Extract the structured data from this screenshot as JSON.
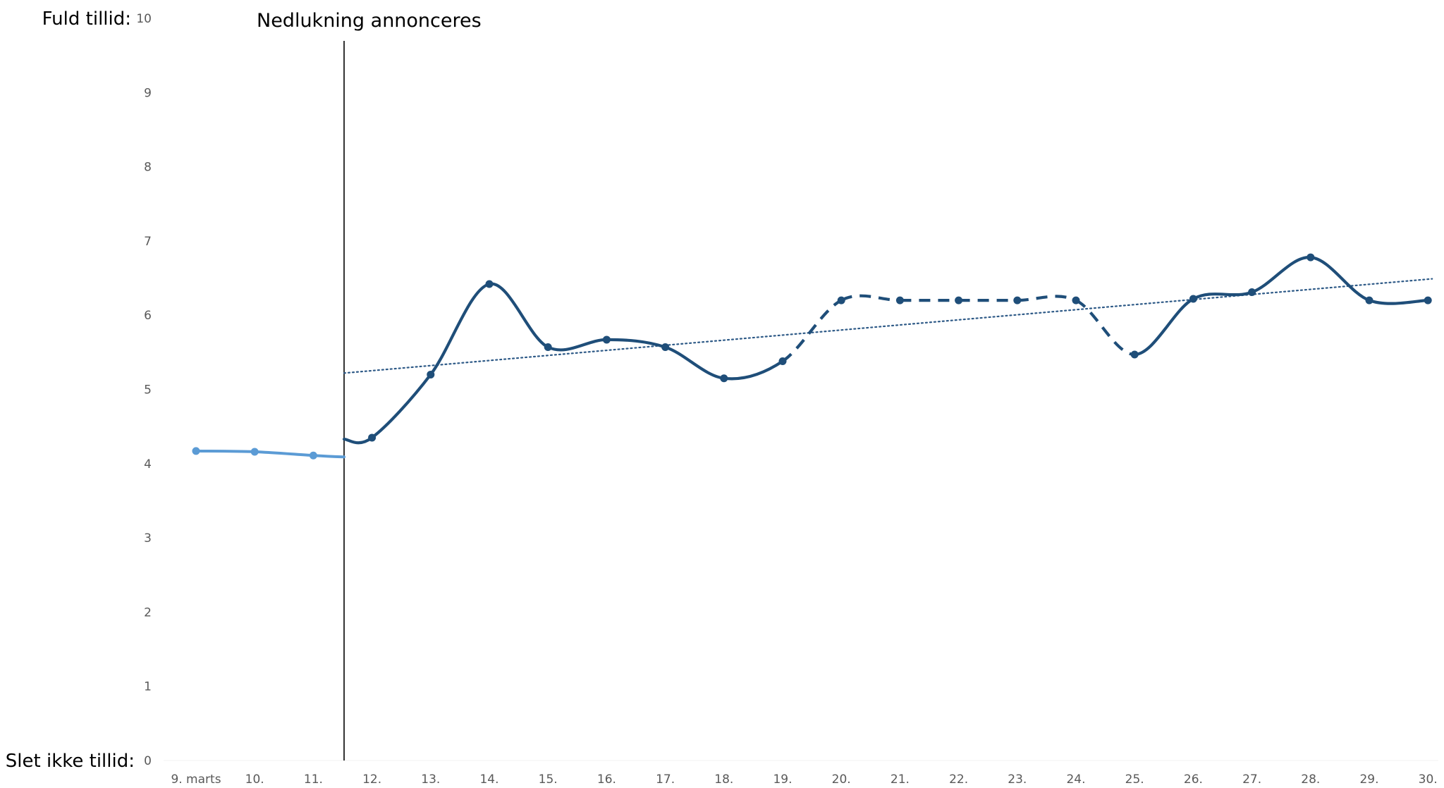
{
  "chart_data": {
    "type": "line",
    "title": "",
    "xlabel": "",
    "ylabel": "",
    "ylim": [
      0,
      10
    ],
    "yticks": [
      0,
      1,
      2,
      3,
      4,
      5,
      6,
      7,
      8,
      9,
      10
    ],
    "y_end_labels": {
      "top": "Fuld tillid:",
      "bottom": "Slet ikke tillid:"
    },
    "categories": [
      "9. marts",
      "10.",
      "11.",
      "12.",
      "13.",
      "14.",
      "15.",
      "16.",
      "17.",
      "18.",
      "19.",
      "20.",
      "21.",
      "22.",
      "23.",
      "24.",
      "25.",
      "26.",
      "27.",
      "28.",
      "29.",
      "30."
    ],
    "annotation": {
      "label": "Nedlukning annonceres",
      "between": [
        "11.",
        "12."
      ]
    },
    "grid": false,
    "legend": "none",
    "series": [
      {
        "style": "light-solid",
        "color": "#5b9bd5",
        "values": [
          4.17,
          4.16,
          4.11,
          null,
          null,
          null,
          null,
          null,
          null,
          null,
          null,
          null,
          null,
          null,
          null,
          null,
          null,
          null,
          null,
          null,
          null,
          null
        ],
        "extends_to_annotation": 4.09
      },
      {
        "style": "dark-solid-dashed",
        "color": "#1f4e79",
        "values": [
          null,
          null,
          null,
          4.35,
          5.2,
          6.42,
          5.57,
          5.67,
          5.57,
          5.15,
          5.38,
          6.2,
          6.2,
          6.2,
          6.2,
          6.2,
          5.47,
          6.22,
          6.31,
          6.78,
          6.2,
          6.2
        ],
        "starts_at_annotation": 4.33,
        "dashed_segments": [
          [
            10,
            11
          ],
          [
            11,
            12
          ],
          [
            12,
            13
          ],
          [
            13,
            14
          ],
          [
            14,
            15
          ],
          [
            15,
            16
          ]
        ]
      },
      {
        "style": "trendline-dotted",
        "color": "#2e5a87",
        "from_annotation": 5.22,
        "to_end": 6.49
      }
    ]
  }
}
